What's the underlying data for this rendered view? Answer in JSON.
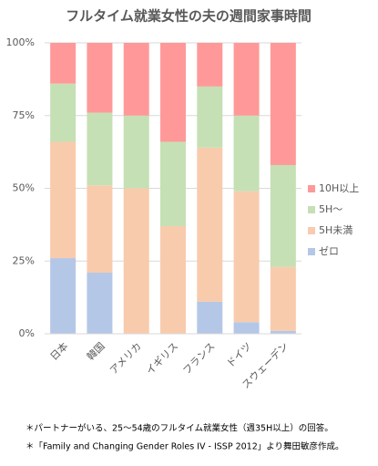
{
  "chart_data": {
    "type": "stacked_bar_percent",
    "title": "フルタイム就業女性の夫の週間家事時間",
    "categories": [
      "日本",
      "韓国",
      "アメリカ",
      "イギリス",
      "フランス",
      "ドイツ",
      "スウェーデン"
    ],
    "series": [
      {
        "name": "ゼロ",
        "color": "#b4c7e7",
        "values": [
          26,
          21,
          0,
          0,
          11,
          4,
          1
        ]
      },
      {
        "name": "5H未満",
        "color": "#f8cbad",
        "values": [
          40,
          30,
          50,
          37,
          53,
          45,
          22
        ]
      },
      {
        "name": "5H〜",
        "color": "#c5e0b4",
        "values": [
          20,
          25,
          25,
          29,
          21,
          26,
          35
        ]
      },
      {
        "name": "10H以上",
        "color": "#ff9999",
        "values": [
          14,
          24,
          25,
          34,
          15,
          25,
          42
        ]
      }
    ],
    "ylim": [
      0,
      100
    ],
    "yticks": [
      {
        "value": 0,
        "label": "0%"
      },
      {
        "value": 25,
        "label": "25%"
      },
      {
        "value": 50,
        "label": "50%"
      },
      {
        "value": 75,
        "label": "75%"
      },
      {
        "value": 100,
        "label": "100%"
      }
    ],
    "grid": true,
    "legend": "right",
    "notes": [
      "＊パートナーがいる、25〜54歳のフルタイム就業女性（週35H以上）の回答。",
      "＊「Family and Changing Gender Roles IV - ISSP 2012」より舞田敏彦作成。"
    ]
  }
}
